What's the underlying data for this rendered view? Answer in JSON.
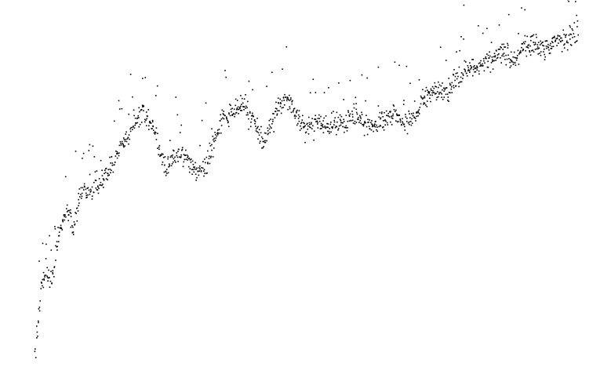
{
  "chart_data": {
    "type": "scatter",
    "title": "",
    "xlabel": "",
    "ylabel": "",
    "axes_visible": false,
    "grid": false,
    "legend": "none",
    "point_color": "#000000",
    "background_color": "#ffffff",
    "xlim": [
      0,
      100
    ],
    "ylim": [
      0,
      100
    ],
    "trend": {
      "x": [
        0,
        1,
        2,
        3,
        4,
        5,
        6,
        7,
        8,
        9,
        10,
        11,
        12,
        14,
        16,
        18,
        20,
        22,
        24,
        26,
        28,
        30,
        32,
        34,
        36,
        38,
        40,
        42,
        44,
        46,
        48,
        50,
        52,
        54,
        56,
        58,
        60,
        62,
        64,
        66,
        68,
        70,
        72,
        74,
        76,
        78,
        80,
        82,
        84,
        86,
        88,
        90,
        92,
        94,
        96,
        98,
        100
      ],
      "y": [
        0,
        18,
        26,
        22,
        33,
        40,
        45,
        37,
        46,
        50,
        48,
        52,
        51,
        56,
        63,
        68,
        73,
        68,
        56,
        60,
        59,
        55,
        58,
        69,
        73,
        76,
        71,
        64,
        72,
        77,
        73,
        68,
        71,
        69,
        70,
        71,
        70,
        69,
        70,
        73,
        69,
        72,
        77,
        80,
        79,
        84,
        86,
        87,
        89,
        91,
        88,
        93,
        94,
        92,
        94,
        95,
        98
      ]
    },
    "noise_spread": 1.6,
    "num_points": 1350,
    "outlier_ratio": 0.08,
    "outlier_lift": [
      3,
      18
    ],
    "random_seed": 1234
  }
}
